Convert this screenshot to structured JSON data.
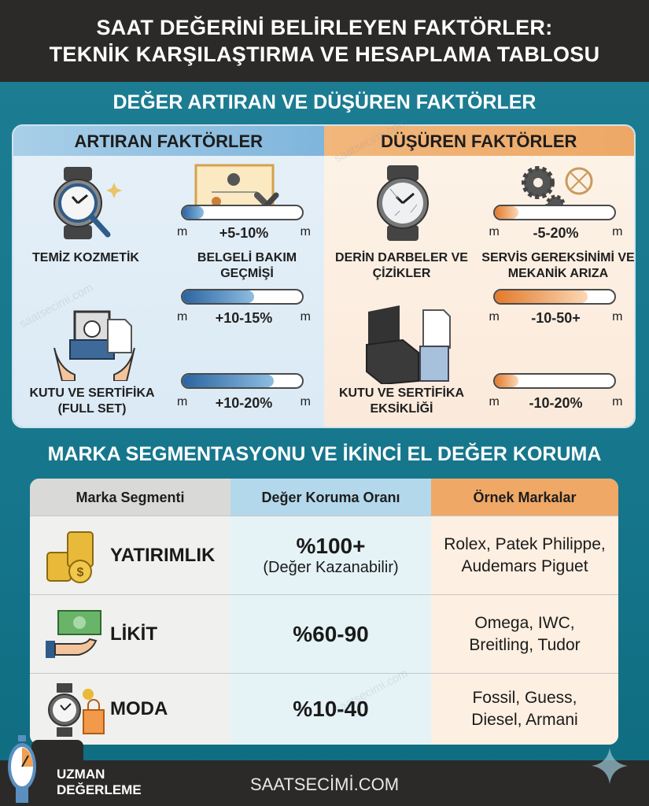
{
  "header": {
    "title_line1": "SAAT DEĞERİNİ BELİRLEYEN FAKTÖRLER:",
    "title_line2": "TEKNİK KARŞILAŞTIRMA VE HESAPLAMA TABLOSU"
  },
  "factors": {
    "title": "DEĞER ARTIRAN VE DÜŞÜREN FAKTÖRLER",
    "increasing": {
      "title": "ARTIRAN FAKTÖRLER",
      "items": [
        {
          "label": "TEMİZ KOZMETİK",
          "icon": "watch-magnifier-icon"
        },
        {
          "label": "BELGELİ BAKIM GEÇMİŞİ",
          "icon": "certificate-wrench-icon"
        },
        {
          "label": "KUTU VE SERTİFİKA (FULL SET)",
          "icon": "box-hands-icon"
        }
      ],
      "bars": [
        {
          "value": "+5-10%",
          "fill_pct": 18
        },
        {
          "value": "+10-15%",
          "fill_pct": 60
        },
        {
          "value": "+10-20%",
          "fill_pct": 76
        }
      ]
    },
    "decreasing": {
      "title": "DÜŞÜREN FAKTÖRLER",
      "items": [
        {
          "label": "DERİN DARBELER VE ÇİZİKLER",
          "icon": "scratched-watch-icon"
        },
        {
          "label": "SERVİS GEREKSİNİMİ VE MEKANİK ARIZA",
          "icon": "gears-icon"
        },
        {
          "label": "KUTU VE SERTİFİKA EKSİKLİĞİ",
          "icon": "empty-box-icon"
        }
      ],
      "bars": [
        {
          "value": "-5-20%",
          "fill_pct": 20
        },
        {
          "value": "-10-50+",
          "fill_pct": 78
        },
        {
          "value": "-10-20%",
          "fill_pct": 20
        }
      ]
    },
    "bar_unit": "m"
  },
  "segments": {
    "title": "MARKA SEGMENTASYONU VE İKİNCİ EL DEĞER KORUMA",
    "headers": [
      "Marka Segmenti",
      "Değer Koruma Oranı",
      "Örnek Markalar"
    ],
    "rows": [
      {
        "segment": "YATIRIMLIK",
        "rate": "%100+",
        "note": "(Değer Kazanabilir)",
        "brands_line1": "Rolex, Patek Philippe,",
        "brands_line2": "Audemars Piguet",
        "icon": "coins-icon"
      },
      {
        "segment": "LİKİT",
        "rate": "%60-90",
        "note": "",
        "brands_line1": "Omega, IWC,",
        "brands_line2": "Breitling, Tudor",
        "icon": "cash-hand-icon"
      },
      {
        "segment": "MODA",
        "rate": "%10-40",
        "note": "",
        "brands_line1": "Fossil, Guess,",
        "brands_line2": "Diesel, Armani",
        "icon": "watch-bag-icon"
      }
    ]
  },
  "footer": {
    "badge_line1": "UZMAN",
    "badge_line2": "DEĞERLEME",
    "site": "SAATSECİMİ.COM"
  },
  "watermark": "saatsecimi.com",
  "colors": {
    "teal": "#1a7a8f",
    "dark": "#2b2a28",
    "blue": "#2a64a0",
    "orange": "#e37a2a"
  }
}
